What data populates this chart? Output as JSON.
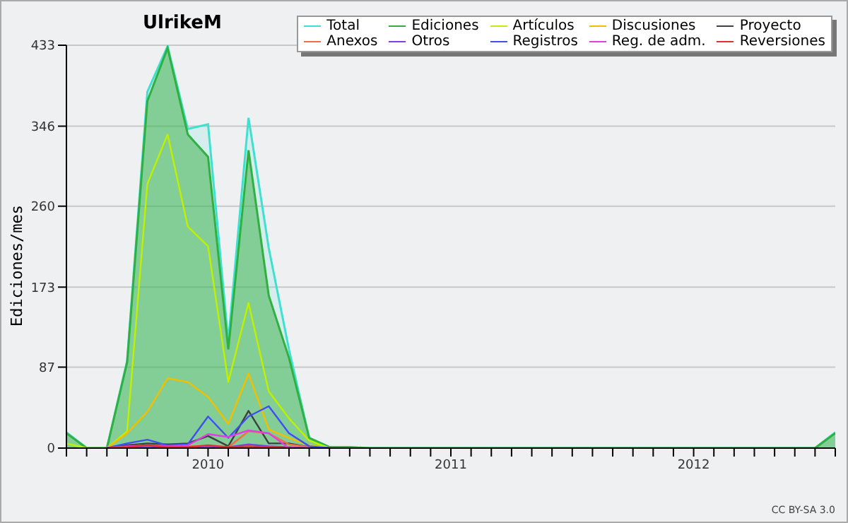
{
  "chart_data": {
    "type": "line",
    "title": "UlrikeM",
    "ylabel": "Ediciones/mes",
    "annotations": [
      "CC BY-SA 3.0"
    ],
    "xlim": [
      "2009-06",
      "2012-08"
    ],
    "ylim": [
      0,
      433
    ],
    "yticks": [
      0,
      87,
      173,
      260,
      346,
      433
    ],
    "xticks": [
      {
        "value": "2009-06",
        "label": null
      },
      {
        "value": "2009-07",
        "label": null
      },
      {
        "value": "2009-08",
        "label": null
      },
      {
        "value": "2009-09",
        "label": null
      },
      {
        "value": "2009-10",
        "label": null
      },
      {
        "value": "2009-11",
        "label": null
      },
      {
        "value": "2009-12",
        "label": null
      },
      {
        "value": "2010-01",
        "label": "2010"
      },
      {
        "value": "2010-02",
        "label": null
      },
      {
        "value": "2010-03",
        "label": null
      },
      {
        "value": "2010-04",
        "label": null
      },
      {
        "value": "2010-05",
        "label": null
      },
      {
        "value": "2010-06",
        "label": null
      },
      {
        "value": "2010-07",
        "label": null
      },
      {
        "value": "2010-08",
        "label": null
      },
      {
        "value": "2010-09",
        "label": null
      },
      {
        "value": "2010-10",
        "label": null
      },
      {
        "value": "2010-11",
        "label": null
      },
      {
        "value": "2010-12",
        "label": null
      },
      {
        "value": "2011-01",
        "label": "2011"
      },
      {
        "value": "2011-02",
        "label": null
      },
      {
        "value": "2011-03",
        "label": null
      },
      {
        "value": "2011-04",
        "label": null
      },
      {
        "value": "2011-05",
        "label": null
      },
      {
        "value": "2011-06",
        "label": null
      },
      {
        "value": "2011-07",
        "label": null
      },
      {
        "value": "2011-08",
        "label": null
      },
      {
        "value": "2011-09",
        "label": null
      },
      {
        "value": "2011-10",
        "label": null
      },
      {
        "value": "2011-11",
        "label": null
      },
      {
        "value": "2011-12",
        "label": null
      },
      {
        "value": "2012-01",
        "label": "2012"
      },
      {
        "value": "2012-02",
        "label": null
      },
      {
        "value": "2012-03",
        "label": null
      },
      {
        "value": "2012-04",
        "label": null
      },
      {
        "value": "2012-05",
        "label": null
      },
      {
        "value": "2012-06",
        "label": null
      },
      {
        "value": "2012-07",
        "label": null
      },
      {
        "value": "2012-08",
        "label": null
      }
    ],
    "x": [
      "2009-06",
      "2009-07",
      "2009-08",
      "2009-09",
      "2009-10",
      "2009-11",
      "2009-12",
      "2010-01",
      "2010-02",
      "2010-03",
      "2010-04",
      "2010-05",
      "2010-06",
      "2010-07",
      "2010-08",
      "2010-09",
      "2010-10",
      "2010-11",
      "2010-12",
      "2011-01",
      "2011-02",
      "2011-03",
      "2011-04",
      "2011-05",
      "2011-06",
      "2011-07",
      "2011-08",
      "2011-09",
      "2011-10",
      "2011-11",
      "2011-12",
      "2012-01",
      "2012-02",
      "2012-03",
      "2012-04",
      "2012-05",
      "2012-06",
      "2012-07",
      "2012-08"
    ],
    "grid": "y",
    "legend": "top right",
    "line_style": "solid",
    "marker": "none",
    "series": [
      {
        "name": "Total",
        "type": "area",
        "color": "#40e0d0",
        "values": [
          17,
          0,
          0,
          94,
          383,
          432,
          343,
          348,
          115,
          355,
          215,
          106,
          11,
          1,
          1,
          0,
          0,
          0,
          0,
          0,
          0,
          0,
          0,
          0,
          0,
          0,
          0,
          0,
          0,
          0,
          0,
          0,
          0,
          0,
          0,
          0,
          0,
          0,
          17
        ]
      },
      {
        "name": "Ediciones",
        "type": "area",
        "color": "#30b040",
        "values": [
          16,
          0,
          0,
          92,
          373,
          430,
          337,
          313,
          106,
          320,
          164,
          97,
          11,
          1,
          1,
          0,
          0,
          0,
          0,
          0,
          0,
          0,
          0,
          0,
          0,
          0,
          0,
          0,
          0,
          0,
          0,
          0,
          0,
          0,
          0,
          0,
          0,
          0,
          16
        ]
      },
      {
        "name": "Artículos",
        "color": "#c0f000",
        "x": [
          "2009-06",
          "2009-07",
          "2009-08",
          "2009-09",
          "2009-10",
          "2009-11",
          "2009-12",
          "2010-01",
          "2010-02",
          "2010-03",
          "2010-04",
          "2010-05",
          "2010-06",
          "2010-07"
        ],
        "values": [
          5,
          0,
          0,
          18,
          284,
          337,
          238,
          217,
          71,
          156,
          61,
          32,
          8,
          0
        ]
      },
      {
        "name": "Discusiones",
        "color": "#f0c000",
        "x": [
          "2009-08",
          "2009-09",
          "2009-10",
          "2009-11",
          "2009-12",
          "2010-01",
          "2010-02",
          "2010-03",
          "2010-04",
          "2010-05",
          "2010-06",
          "2010-07"
        ],
        "values": [
          0,
          16,
          39,
          75,
          71,
          55,
          26,
          80,
          20,
          11,
          3,
          0
        ]
      },
      {
        "name": "Proyecto",
        "color": "#404040",
        "x": [
          "2009-08",
          "2009-09",
          "2009-10",
          "2009-11",
          "2009-12",
          "2010-01",
          "2010-02",
          "2010-03",
          "2010-04",
          "2010-05",
          "2010-06",
          "2010-07"
        ],
        "values": [
          0,
          3,
          5,
          4,
          5,
          13,
          2,
          40,
          5,
          5,
          1,
          0
        ]
      },
      {
        "name": "Anexos",
        "color": "#f07040",
        "x": [
          "2009-11",
          "2009-12",
          "2010-01",
          "2010-02",
          "2010-03",
          "2010-04",
          "2010-05",
          "2010-06",
          "2010-07"
        ],
        "values": [
          1,
          2,
          2,
          1,
          18,
          16,
          4,
          1,
          0
        ]
      },
      {
        "name": "Otros",
        "color": "#8040e0",
        "x": [
          "2009-08",
          "2009-09",
          "2009-10",
          "2009-11",
          "2009-12",
          "2010-01",
          "2010-02",
          "2010-03",
          "2010-04",
          "2010-05",
          "2010-06",
          "2010-07"
        ],
        "values": [
          0,
          1,
          2,
          1,
          1,
          2,
          1,
          4,
          2,
          1,
          0,
          0
        ]
      },
      {
        "name": "Registros",
        "color": "#4050f0",
        "x": [
          "2009-08",
          "2009-09",
          "2009-10",
          "2009-11",
          "2009-12",
          "2010-01",
          "2010-02",
          "2010-03",
          "2010-04",
          "2010-05",
          "2010-06",
          "2010-07"
        ],
        "values": [
          0,
          5,
          9,
          3,
          4,
          34,
          11,
          34,
          45,
          16,
          2,
          0
        ]
      },
      {
        "name": "Reg. de adm.",
        "color": "#e040e0",
        "x": [
          "2009-08",
          "2009-09",
          "2009-10",
          "2009-11",
          "2009-12",
          "2010-01",
          "2010-02",
          "2010-03",
          "2010-04",
          "2010-05",
          "2010-06"
        ],
        "values": [
          0,
          2,
          3,
          2,
          3,
          15,
          12,
          19,
          16,
          0,
          0
        ]
      },
      {
        "name": "Reversiones",
        "color": "#e03030",
        "x": [
          "2009-08",
          "2009-09",
          "2009-10",
          "2009-11",
          "2009-12",
          "2010-01",
          "2010-02",
          "2010-03",
          "2010-04",
          "2010-05",
          "2010-06"
        ],
        "values": [
          0,
          1,
          3,
          1,
          1,
          3,
          1,
          2,
          1,
          0,
          0
        ]
      }
    ]
  }
}
